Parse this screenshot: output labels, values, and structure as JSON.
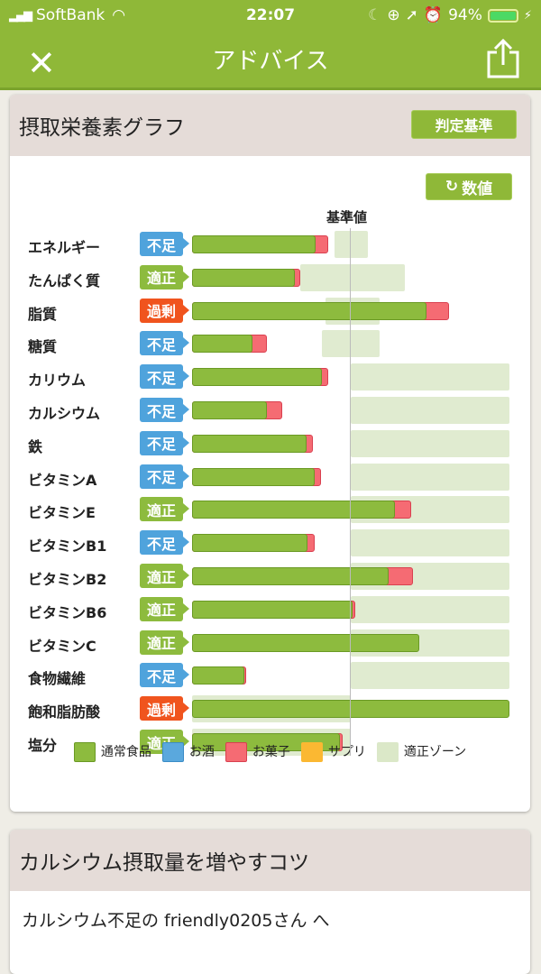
{
  "status": {
    "carrier": "SoftBank",
    "time": "22:07",
    "battery": "94%"
  },
  "nav": {
    "title": "アドバイス",
    "close_icon": "close-icon",
    "share_icon": "share-icon"
  },
  "graph_card": {
    "title": "摂取栄養素グラフ",
    "judge_button": "判定基準",
    "value_button": "数値",
    "reference_label": "基準値"
  },
  "status_labels": {
    "short": "不足",
    "ok": "適正",
    "over": "過剰"
  },
  "colors": {
    "food": "#8dbb3e",
    "alcohol": "#5aa8dd",
    "sweets": "#f56b73",
    "supplement": "#fbb832",
    "zone": "#dbe8c8",
    "short": "#4fa3dc",
    "ok": "#8dbb3e",
    "over": "#f0541e"
  },
  "chart_data": {
    "type": "bar",
    "orientation": "horizontal",
    "stacked": true,
    "unit": "% of reference",
    "reference_value": 100,
    "xlim": [
      0,
      200
    ],
    "legend": [
      "通常食品",
      "お酒",
      "お菓子",
      "サプリ",
      "適正ゾーン"
    ],
    "legend_placement": "bottom",
    "categories": [
      "エネルギー",
      "たんぱく質",
      "脂質",
      "糖質",
      "カリウム",
      "カルシウム",
      "鉄",
      "ビタミンA",
      "ビタミンE",
      "ビタミンB1",
      "ビタミンB2",
      "ビタミンB6",
      "ビタミンC",
      "食物繊維",
      "飽和脂肪酸",
      "塩分"
    ],
    "status": [
      "short",
      "ok",
      "over",
      "short",
      "short",
      "short",
      "short",
      "short",
      "ok",
      "short",
      "ok",
      "ok",
      "ok",
      "short",
      "over",
      "ok"
    ],
    "series": [
      {
        "name": "通常食品",
        "values": [
          78,
          65,
          148,
          38,
          82,
          47,
          72,
          77,
          128,
          73,
          124,
          101,
          143,
          33,
          200,
          93
        ]
      },
      {
        "name": "お菓子",
        "values": [
          8,
          3,
          14,
          9,
          4,
          10,
          4,
          4,
          10,
          4,
          15,
          2,
          0,
          1,
          0,
          2
        ]
      }
    ],
    "zones": [
      [
        90,
        111
      ],
      [
        68,
        134
      ],
      [
        84,
        118
      ],
      [
        82,
        118
      ],
      [
        100,
        200
      ],
      [
        100,
        200
      ],
      [
        100,
        200
      ],
      [
        100,
        200
      ],
      [
        100,
        200
      ],
      [
        100,
        200
      ],
      [
        100,
        200
      ],
      [
        100,
        200
      ],
      [
        100,
        200
      ],
      [
        100,
        200
      ],
      [
        0,
        100
      ],
      [
        0,
        100
      ]
    ]
  },
  "tips_card": {
    "title": "カルシウム摂取量を増やすコツ",
    "message": "カルシウム不足の friendly0205さん へ"
  }
}
